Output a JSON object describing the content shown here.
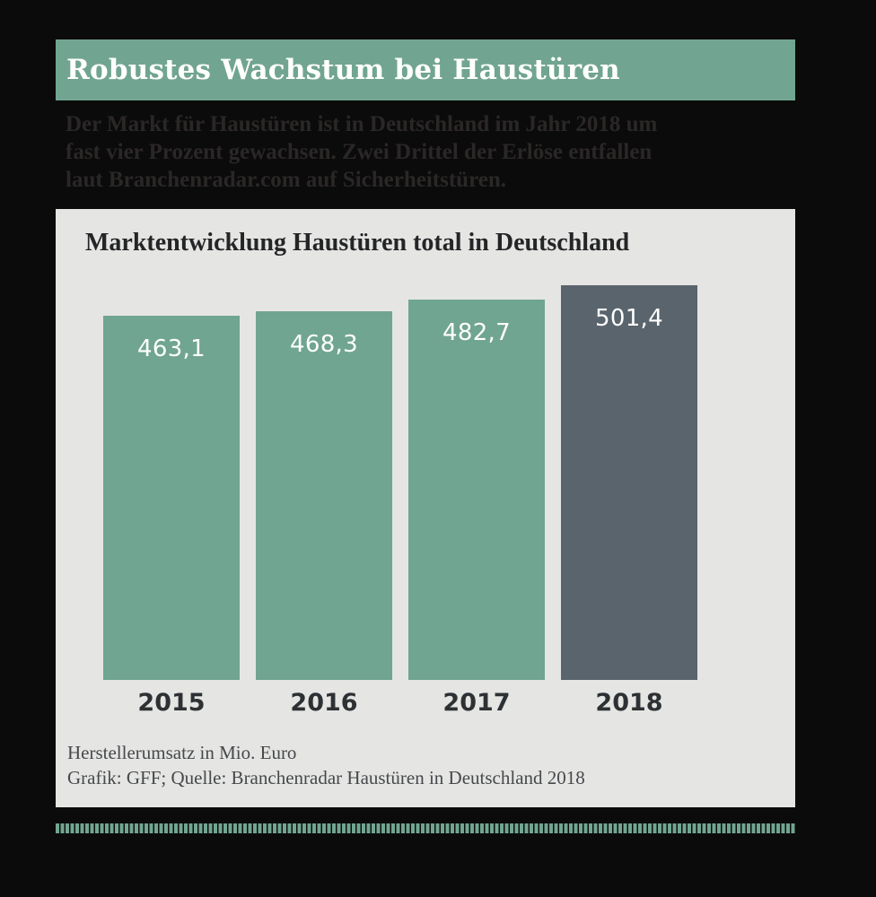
{
  "page": {
    "background": "#0b0b0b"
  },
  "header": {
    "title": "Robustes Wachstum bei Haustüren",
    "background": "#71a591",
    "text_color": "#ffffff"
  },
  "intro": {
    "text": "Der Markt für Haustüren ist in Deutschland im Jahr 2018 um\nfast vier Prozent gewachsen. Zwei Drittel der Erlöse entfallen\nlaut Branchenradar.com auf Sicherheitstüren.",
    "text_color": "#2b2727"
  },
  "chart_data": {
    "type": "bar",
    "title": "Marktentwicklung Haustüren total in Deutschland",
    "categories": [
      "2015",
      "2016",
      "2017",
      "2018"
    ],
    "values": [
      463.1,
      468.3,
      482.7,
      501.4
    ],
    "value_labels": [
      "463,1",
      "468,3",
      "482,7",
      "501,4"
    ],
    "series_name": "Herstellerumsatz",
    "bar_colors": [
      "#70a591",
      "#70a591",
      "#70a591",
      "#5a646d"
    ],
    "ylim": [
      0,
      501.4
    ],
    "grid": false,
    "legend": "none",
    "value_label_position": "inside-top",
    "unit_note": "Herstellerumsatz in Mio. Euro",
    "source_note": "Grafik: GFF; Quelle: Branchenradar Haustüren in Deutschland 2018",
    "panel_background": "#e5e5e3",
    "highlight_year": "2018"
  },
  "divider": {
    "color": "#71a591",
    "style": "dashed"
  }
}
